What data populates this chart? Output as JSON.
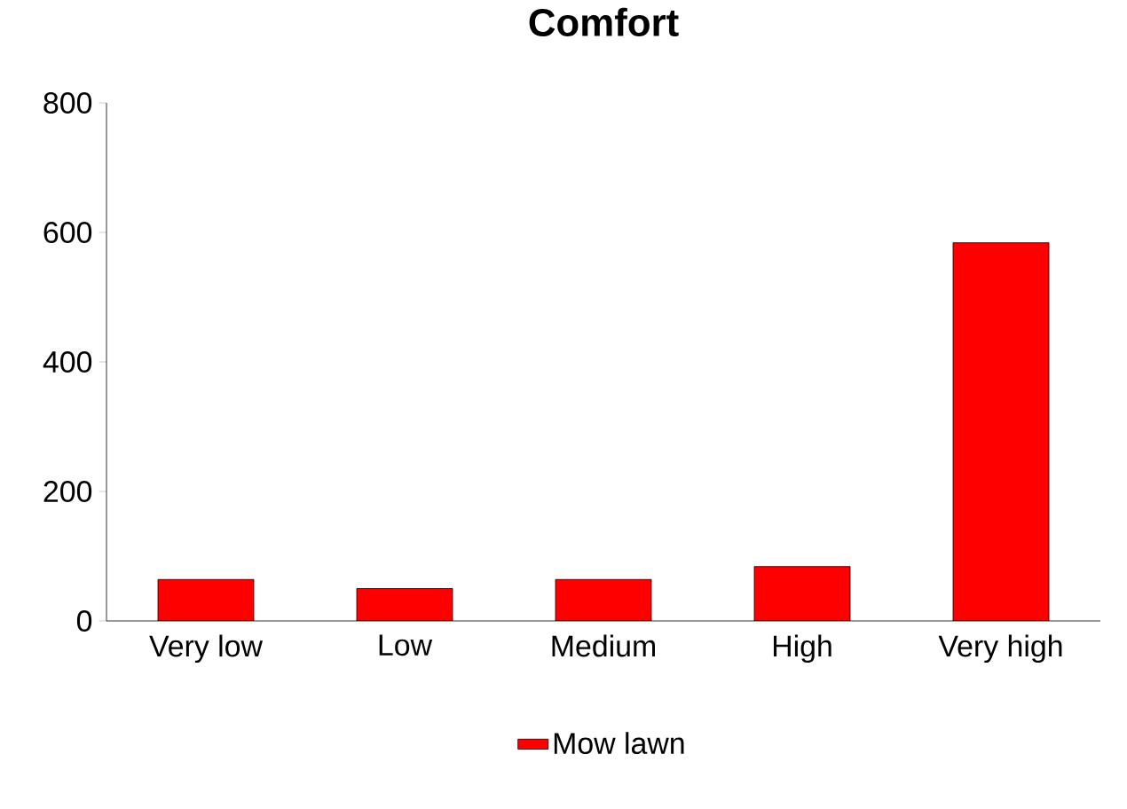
{
  "chart_data": {
    "type": "bar",
    "title": "Comfort",
    "categories": [
      "Very low",
      "Low",
      "Medium",
      "High",
      "Very high"
    ],
    "series": [
      {
        "name": "Mow lawn",
        "color": "#ff0000",
        "values": [
          64,
          50,
          64,
          84,
          584
        ]
      }
    ],
    "ylim": [
      0,
      800
    ],
    "yticks": [
      0,
      200,
      400,
      600,
      800
    ],
    "grid": false,
    "legend": "bottom"
  }
}
